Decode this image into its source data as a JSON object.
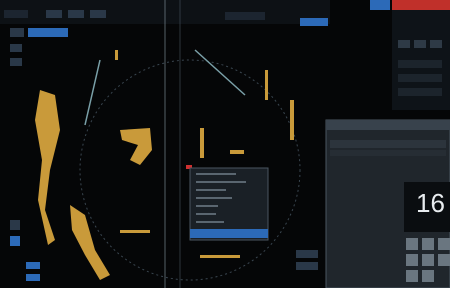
{
  "panel": {
    "value": "16"
  }
}
